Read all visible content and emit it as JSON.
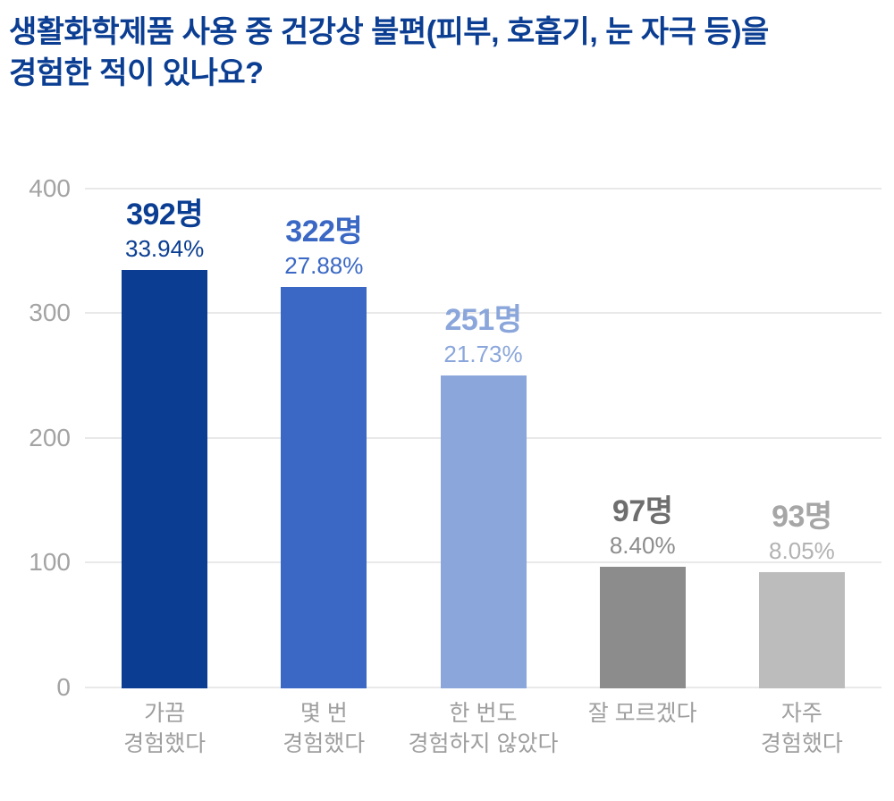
{
  "title": {
    "line1": "생활화학제품 사용 중 건강상 불편(피부, 호흡기, 눈 자극 등)을",
    "line2": "경험한 적이 있나요?",
    "color": "#0b3e92"
  },
  "chart_data": {
    "type": "bar",
    "title": "생활화학제품 사용 중 건강상 불편(피부, 호흡기, 눈 자극 등)을 경험한 적이 있나요?",
    "categories": [
      "가끔\n경험했다",
      "몇 번\n경험했다",
      "한 번도\n경험하지 않았다",
      "잘 모르겠다",
      "자주\n경험했다"
    ],
    "values": [
      392,
      322,
      251,
      97,
      93
    ],
    "count_labels": [
      "392명",
      "322명",
      "251명",
      "97명",
      "93명"
    ],
    "percent_labels": [
      "33.94%",
      "27.88%",
      "21.73%",
      "8.40%",
      "8.05%"
    ],
    "bar_colors": [
      "#0b3e92",
      "#3a68c4",
      "#8aa6db",
      "#8c8c8c",
      "#bcbcbc"
    ],
    "count_colors": [
      "#0b3e92",
      "#3a68c4",
      "#8aa6db",
      "#6e6e6e",
      "#a6a6a6"
    ],
    "percent_colors": [
      "#0b3e92",
      "#3a68c4",
      "#8aa6db",
      "#8c8c8c",
      "#b2b2b2"
    ],
    "ylim": [
      0,
      400
    ],
    "yticks": [
      0,
      100,
      200,
      300,
      400
    ],
    "grid": true,
    "legend": false,
    "axis_tick_color": "#a3a3a3",
    "grid_color": "#e9e9e9"
  }
}
